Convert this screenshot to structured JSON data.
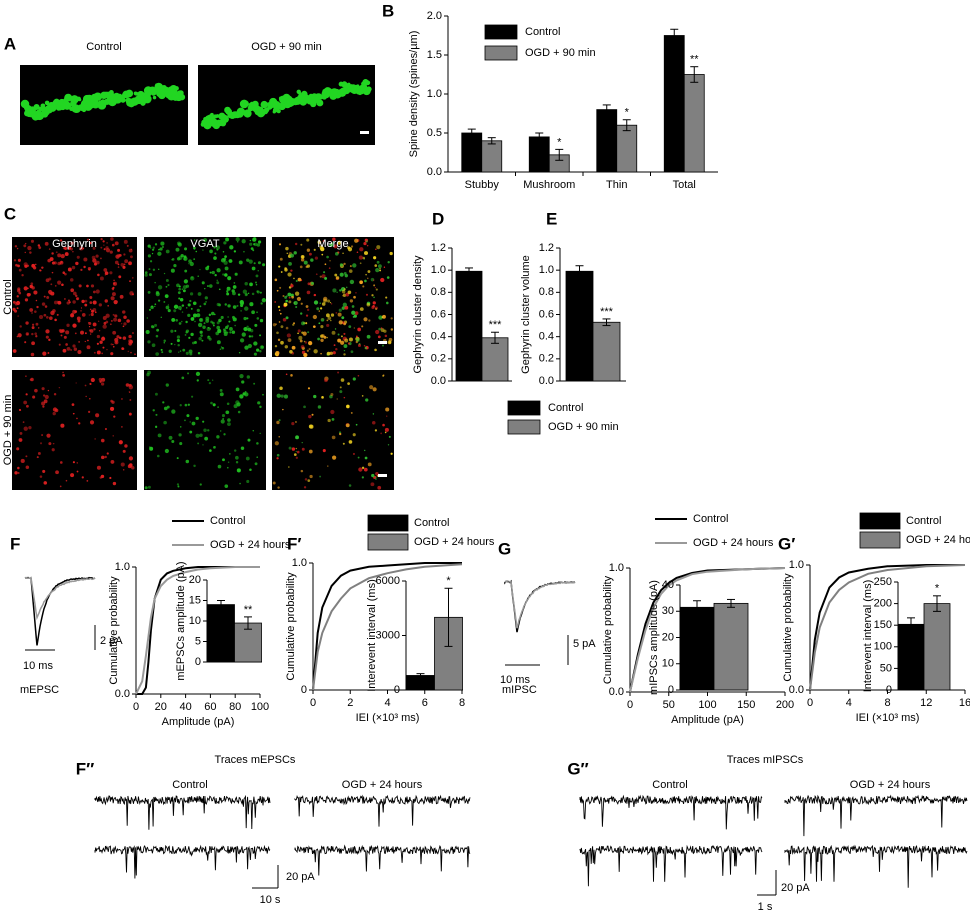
{
  "panel_a": {
    "label": "A",
    "images": [
      "Control",
      "OGD + 90 min"
    ]
  },
  "panel_c": {
    "label": "C",
    "columns": [
      "Gephyrin",
      "VGAT",
      "Merge"
    ],
    "rows": [
      "Control",
      "OGD + 90 min"
    ]
  },
  "trace_f": {
    "scale_y": "2 pA",
    "scale_x": "10 ms",
    "name": "mEPSC"
  },
  "trace_g": {
    "scale_y": "5 pA",
    "scale_x": "10 ms",
    "name": "mIPSC"
  },
  "panel_f2": {
    "label": "F″",
    "title": "Traces  mEPSCs",
    "columns": [
      "Control",
      "OGD + 24 hours"
    ],
    "scale_y": "20 pA",
    "scale_x": "10 s"
  },
  "panel_g2": {
    "label": "G″",
    "title": "Traces  mIPSCs",
    "columns": [
      "Control",
      "OGD + 24 hours"
    ],
    "scale_y": "20 pA",
    "scale_x": "1 s"
  },
  "chart_data": [
    {
      "type": "bar",
      "panel": "B",
      "ylabel": "Spine density (spines/µm)",
      "categories": [
        "Stubby",
        "Mushroom",
        "Thin",
        "Total"
      ],
      "series": [
        {
          "name": "Control",
          "color": "#000000",
          "values": [
            0.5,
            0.45,
            0.8,
            1.75
          ],
          "errors": [
            0.05,
            0.05,
            0.06,
            0.08
          ]
        },
        {
          "name": "OGD + 90 min",
          "color": "#808080",
          "values": [
            0.4,
            0.22,
            0.6,
            1.25
          ],
          "errors": [
            0.04,
            0.07,
            0.07,
            0.1
          ],
          "significance": [
            null,
            "*",
            "*",
            "**"
          ]
        }
      ],
      "ylim": [
        0,
        2.0
      ],
      "yticks": [
        {
          "value": 0,
          "label": "0.0"
        },
        0.5,
        {
          "value": 1,
          "label": "1.0"
        },
        1.5,
        {
          "value": 2,
          "label": "2.0"
        }
      ],
      "legend": true
    },
    {
      "type": "bar",
      "panel": "D",
      "ylabel": "Gephyrin cluster density",
      "categories": [
        null
      ],
      "series": [
        {
          "name": "Control",
          "color": "#000000",
          "values": [
            0.99
          ],
          "errors": [
            0.03
          ]
        },
        {
          "name": "OGD + 90 min",
          "color": "#808080",
          "values": [
            0.39
          ],
          "errors": [
            0.05
          ],
          "significance": [
            "***"
          ]
        }
      ],
      "ylim": [
        0,
        1.2
      ],
      "yticks": [
        {
          "value": 0,
          "label": "0.0"
        },
        0.2,
        0.4,
        0.6,
        0.8,
        {
          "value": 1,
          "label": "1.0"
        },
        1.2
      ],
      "legend": true
    },
    {
      "type": "bar",
      "panel": "E",
      "ylabel": "Gephyrin cluster volume",
      "categories": [
        null
      ],
      "series": [
        {
          "color": "#000000",
          "values": [
            0.99
          ],
          "errors": [
            0.05
          ]
        },
        {
          "color": "#808080",
          "values": [
            0.53
          ],
          "errors": [
            0.03
          ],
          "significance": [
            "***"
          ]
        }
      ],
      "ylim": [
        0,
        1.2
      ],
      "yticks": [
        {
          "value": 0,
          "label": "0.0"
        },
        0.2,
        0.4,
        0.6,
        0.8,
        {
          "value": 1,
          "label": "1.0"
        },
        1.2
      ],
      "legend": false
    },
    {
      "type": "line",
      "panel": "F",
      "xlabel": "Amplitude (pA)",
      "ylabel": "Cumulative probability",
      "legend_marker": "line",
      "x": [
        0,
        5,
        8,
        10,
        12,
        15,
        20,
        25,
        30,
        40,
        50,
        60,
        80,
        100
      ],
      "series": [
        {
          "name": "Control",
          "color": "#000000",
          "values": [
            0,
            0,
            0.05,
            0.25,
            0.5,
            0.75,
            0.9,
            0.95,
            0.97,
            0.99,
            1,
            1,
            1,
            1
          ]
        },
        {
          "name": "OGD + 24 hours",
          "color": "#999999",
          "values": [
            0,
            0.1,
            0.3,
            0.45,
            0.6,
            0.75,
            0.85,
            0.9,
            0.93,
            0.96,
            0.98,
            0.99,
            1,
            1
          ]
        }
      ],
      "xlim": [
        0,
        100
      ],
      "xticks": [
        0,
        20,
        40,
        60,
        80,
        100
      ],
      "ylim": [
        0,
        1
      ],
      "yticks": [
        {
          "value": 0,
          "label": "0.0"
        },
        {
          "value": 1,
          "label": "1.0"
        }
      ],
      "inset": {
        "type": "bar",
        "ylabel": "mEPSCs amplitude (pA)",
        "categories": [
          null
        ],
        "series": [
          {
            "color": "#000000",
            "values": [
              14
            ],
            "errors": [
              1
            ]
          },
          {
            "color": "#808080",
            "values": [
              9.5
            ],
            "errors": [
              1.5
            ],
            "significance": [
              "**"
            ]
          }
        ],
        "ylim": [
          0,
          20
        ],
        "yticks": [
          0,
          5,
          10,
          15,
          20
        ]
      }
    },
    {
      "type": "line",
      "panel": "F′",
      "xlabel": "IEI (×10³ ms)",
      "ylabel": "Cumulative probability",
      "legend_marker": "box",
      "x": [
        0,
        0.25,
        0.5,
        1,
        1.5,
        2,
        3,
        4,
        5,
        6,
        8
      ],
      "series": [
        {
          "name": "Control",
          "color": "#000000",
          "values": [
            0,
            0.45,
            0.65,
            0.82,
            0.9,
            0.94,
            0.97,
            0.98,
            0.99,
            1,
            1
          ]
        },
        {
          "name": "OGD + 24 hours",
          "color": "#808080",
          "values": [
            0,
            0.3,
            0.45,
            0.62,
            0.72,
            0.8,
            0.88,
            0.92,
            0.95,
            0.97,
            0.99
          ]
        }
      ],
      "xlim": [
        0,
        8
      ],
      "xticks": [
        0,
        2,
        4,
        6,
        8
      ],
      "ylim": [
        0,
        1
      ],
      "yticks": [
        0,
        {
          "value": 1,
          "label": "1.0"
        }
      ],
      "inset": {
        "type": "bar",
        "ylabel": "Interevent interval (ms)",
        "categories": [
          null
        ],
        "series": [
          {
            "color": "#000000",
            "values": [
              800
            ],
            "errors": [
              100
            ]
          },
          {
            "color": "#808080",
            "values": [
              4000
            ],
            "errors": [
              1600
            ],
            "significance": [
              "*"
            ]
          }
        ],
        "ylim": [
          0,
          6000
        ],
        "yticks": [
          0,
          3000,
          6000
        ]
      }
    },
    {
      "type": "line",
      "panel": "G",
      "xlabel": "Amplitude (pA)",
      "ylabel": "Cumulative probability",
      "legend_marker": "line",
      "x": [
        0,
        10,
        20,
        30,
        40,
        50,
        60,
        80,
        100,
        150,
        200
      ],
      "series": [
        {
          "name": "Control",
          "color": "#000000",
          "values": [
            0,
            0.3,
            0.55,
            0.72,
            0.82,
            0.88,
            0.92,
            0.96,
            0.98,
            0.99,
            1
          ]
        },
        {
          "name": "OGD + 24 hours",
          "color": "#999999",
          "values": [
            0,
            0.27,
            0.5,
            0.68,
            0.79,
            0.86,
            0.9,
            0.95,
            0.97,
            0.99,
            1
          ]
        }
      ],
      "xlim": [
        0,
        200
      ],
      "xticks": [
        0,
        50,
        100,
        150,
        200
      ],
      "ylim": [
        0,
        1
      ],
      "yticks": [
        {
          "value": 0,
          "label": "0.0"
        },
        {
          "value": 1,
          "label": "1.0"
        }
      ],
      "inset": {
        "type": "bar",
        "ylabel": "mIPSCs amplitude (pA)",
        "categories": [
          null
        ],
        "series": [
          {
            "color": "#000000",
            "values": [
              31.5
            ],
            "errors": [
              2.5
            ]
          },
          {
            "color": "#808080",
            "values": [
              33
            ],
            "errors": [
              1.5
            ]
          }
        ],
        "ylim": [
          0,
          40
        ],
        "yticks": [
          0,
          10,
          20,
          30,
          40
        ]
      }
    },
    {
      "type": "line",
      "panel": "G′",
      "xlabel": "IEI (×10³ ms)",
      "ylabel": "Cumulative probability",
      "legend_marker": "box",
      "x": [
        0,
        0.5,
        1,
        2,
        3,
        4,
        6,
        8,
        12,
        16
      ],
      "series": [
        {
          "name": "Control",
          "color": "#000000",
          "values": [
            0,
            0.4,
            0.62,
            0.82,
            0.9,
            0.94,
            0.97,
            0.99,
            1,
            1
          ]
        },
        {
          "name": "OGD + 24 hours",
          "color": "#808080",
          "values": [
            0,
            0.3,
            0.5,
            0.7,
            0.8,
            0.86,
            0.93,
            0.96,
            0.99,
            1
          ]
        }
      ],
      "xlim": [
        0,
        16
      ],
      "xticks": [
        0,
        4,
        8,
        12,
        16
      ],
      "ylim": [
        0,
        1
      ],
      "yticks": [
        {
          "value": 0,
          "label": "0.0"
        },
        {
          "value": 1,
          "label": "1.0"
        }
      ],
      "inset": {
        "type": "bar",
        "ylabel": "Interevent interval (ms)",
        "categories": [
          null
        ],
        "series": [
          {
            "color": "#000000",
            "values": [
              152
            ],
            "errors": [
              15
            ]
          },
          {
            "color": "#808080",
            "values": [
              200
            ],
            "errors": [
              18
            ],
            "significance": [
              "*"
            ]
          }
        ],
        "ylim": [
          0,
          250
        ],
        "yticks": [
          0,
          50,
          100,
          150,
          200,
          250
        ]
      }
    }
  ]
}
